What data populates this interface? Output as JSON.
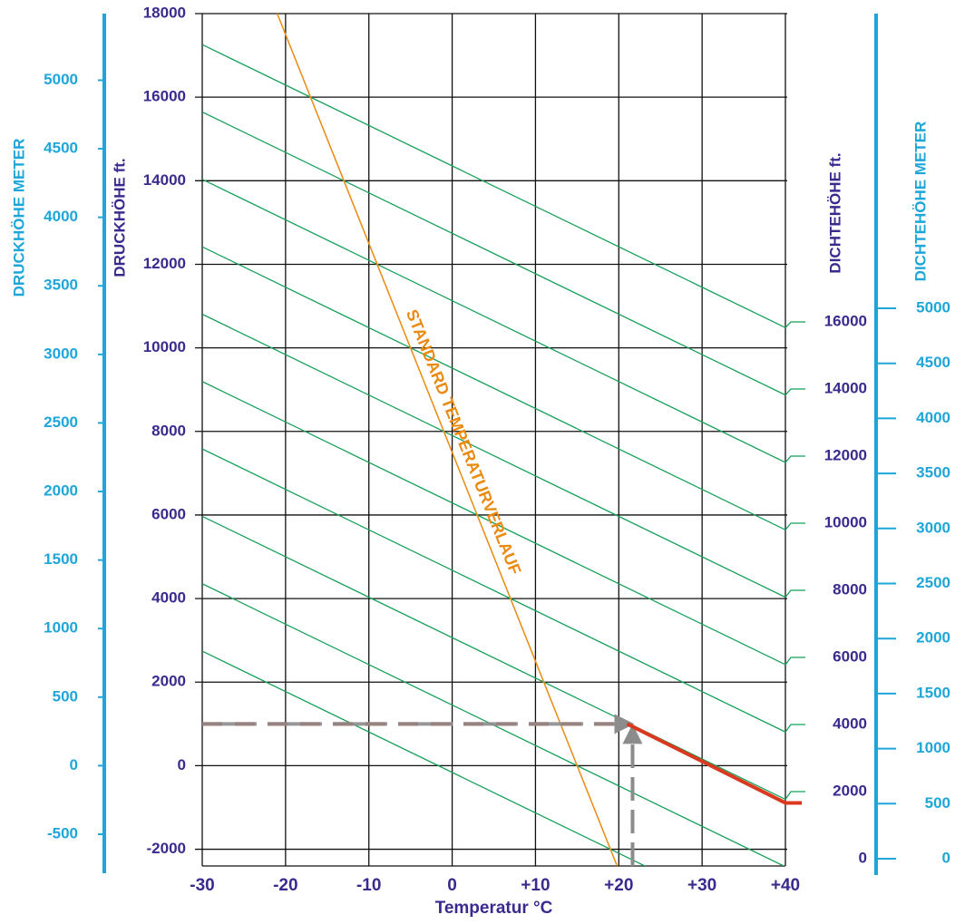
{
  "chart_data": {
    "type": "density-altitude",
    "xlabel": "Temperatur °C",
    "xlim": [
      -30,
      40
    ],
    "xticks": [
      -30,
      -20,
      -10,
      0,
      {
        "value": 10,
        "label": "+10"
      },
      {
        "value": 20,
        "label": "+20"
      },
      {
        "value": 30,
        "label": "+30"
      },
      {
        "value": 40,
        "label": "+40"
      }
    ],
    "ylabel": "DRUCKHÖHE ft.",
    "ylim": [
      -2400,
      18000
    ],
    "yticks": [
      -2000,
      0,
      2000,
      4000,
      6000,
      8000,
      10000,
      12000,
      14000,
      16000,
      18000
    ],
    "y_meter": {
      "label": "DRUCKHÖHE METER",
      "lim": [
        -731.5,
        5486
      ],
      "ticks": [
        -500,
        0,
        500,
        1000,
        1500,
        2000,
        2500,
        3000,
        3500,
        4000,
        4500,
        5000
      ]
    },
    "y2label": "DICHTEHÖHE ft.",
    "y2lim": [
      -216,
      25189
    ],
    "y2ticks": [
      0,
      2000,
      4000,
      6000,
      8000,
      10000,
      12000,
      14000,
      16000
    ],
    "y2_meter": {
      "label": "DICHTEHÖHE METER",
      "lim": [
        -66,
        7677
      ],
      "ticks": [
        0,
        500,
        1000,
        1500,
        2000,
        2500,
        3000,
        3500,
        4000,
        4500,
        5000
      ]
    },
    "density_lines": [
      {
        "density_altitude": 16000,
        "pressure_altitude": [
          17258,
          10484
        ]
      },
      {
        "density_altitude": 14000,
        "pressure_altitude": [
          15645,
          8871
        ]
      },
      {
        "density_altitude": 12000,
        "pressure_altitude": [
          14032,
          7258
        ]
      },
      {
        "density_altitude": 10000,
        "pressure_altitude": [
          12419,
          5645
        ]
      },
      {
        "density_altitude": 8000,
        "pressure_altitude": [
          10806,
          4032
        ]
      },
      {
        "density_altitude": 6000,
        "pressure_altitude": [
          9194,
          2419
        ]
      },
      {
        "density_altitude": 4000,
        "pressure_altitude": [
          7581,
          806
        ]
      },
      {
        "density_altitude": 2000,
        "pressure_altitude": [
          5968,
          -806
        ]
      },
      {
        "density_altitude": 0,
        "pressure_altitude": [
          4355,
          -2419
        ]
      },
      {
        "density_altitude": -2000,
        "pressure_altitude": [
          2742,
          -4032
        ]
      }
    ],
    "standard_line": {
      "label": "STANDARD TEMPERATURVERLAUF",
      "x": [
        -21,
        19.8
      ],
      "y": [
        18000,
        -2400
      ]
    },
    "example": {
      "temperature": 21,
      "pressure_altitude": 1000,
      "end_pressure_altitude": -891
    },
    "colors": {
      "meter": "#1ea6d9",
      "feet": "#3a2a8e",
      "density": "#17a05a",
      "standard": "#ea8a10",
      "example": "#d8391f",
      "arrow": "#8c8c8c",
      "grid": "#111111"
    }
  }
}
